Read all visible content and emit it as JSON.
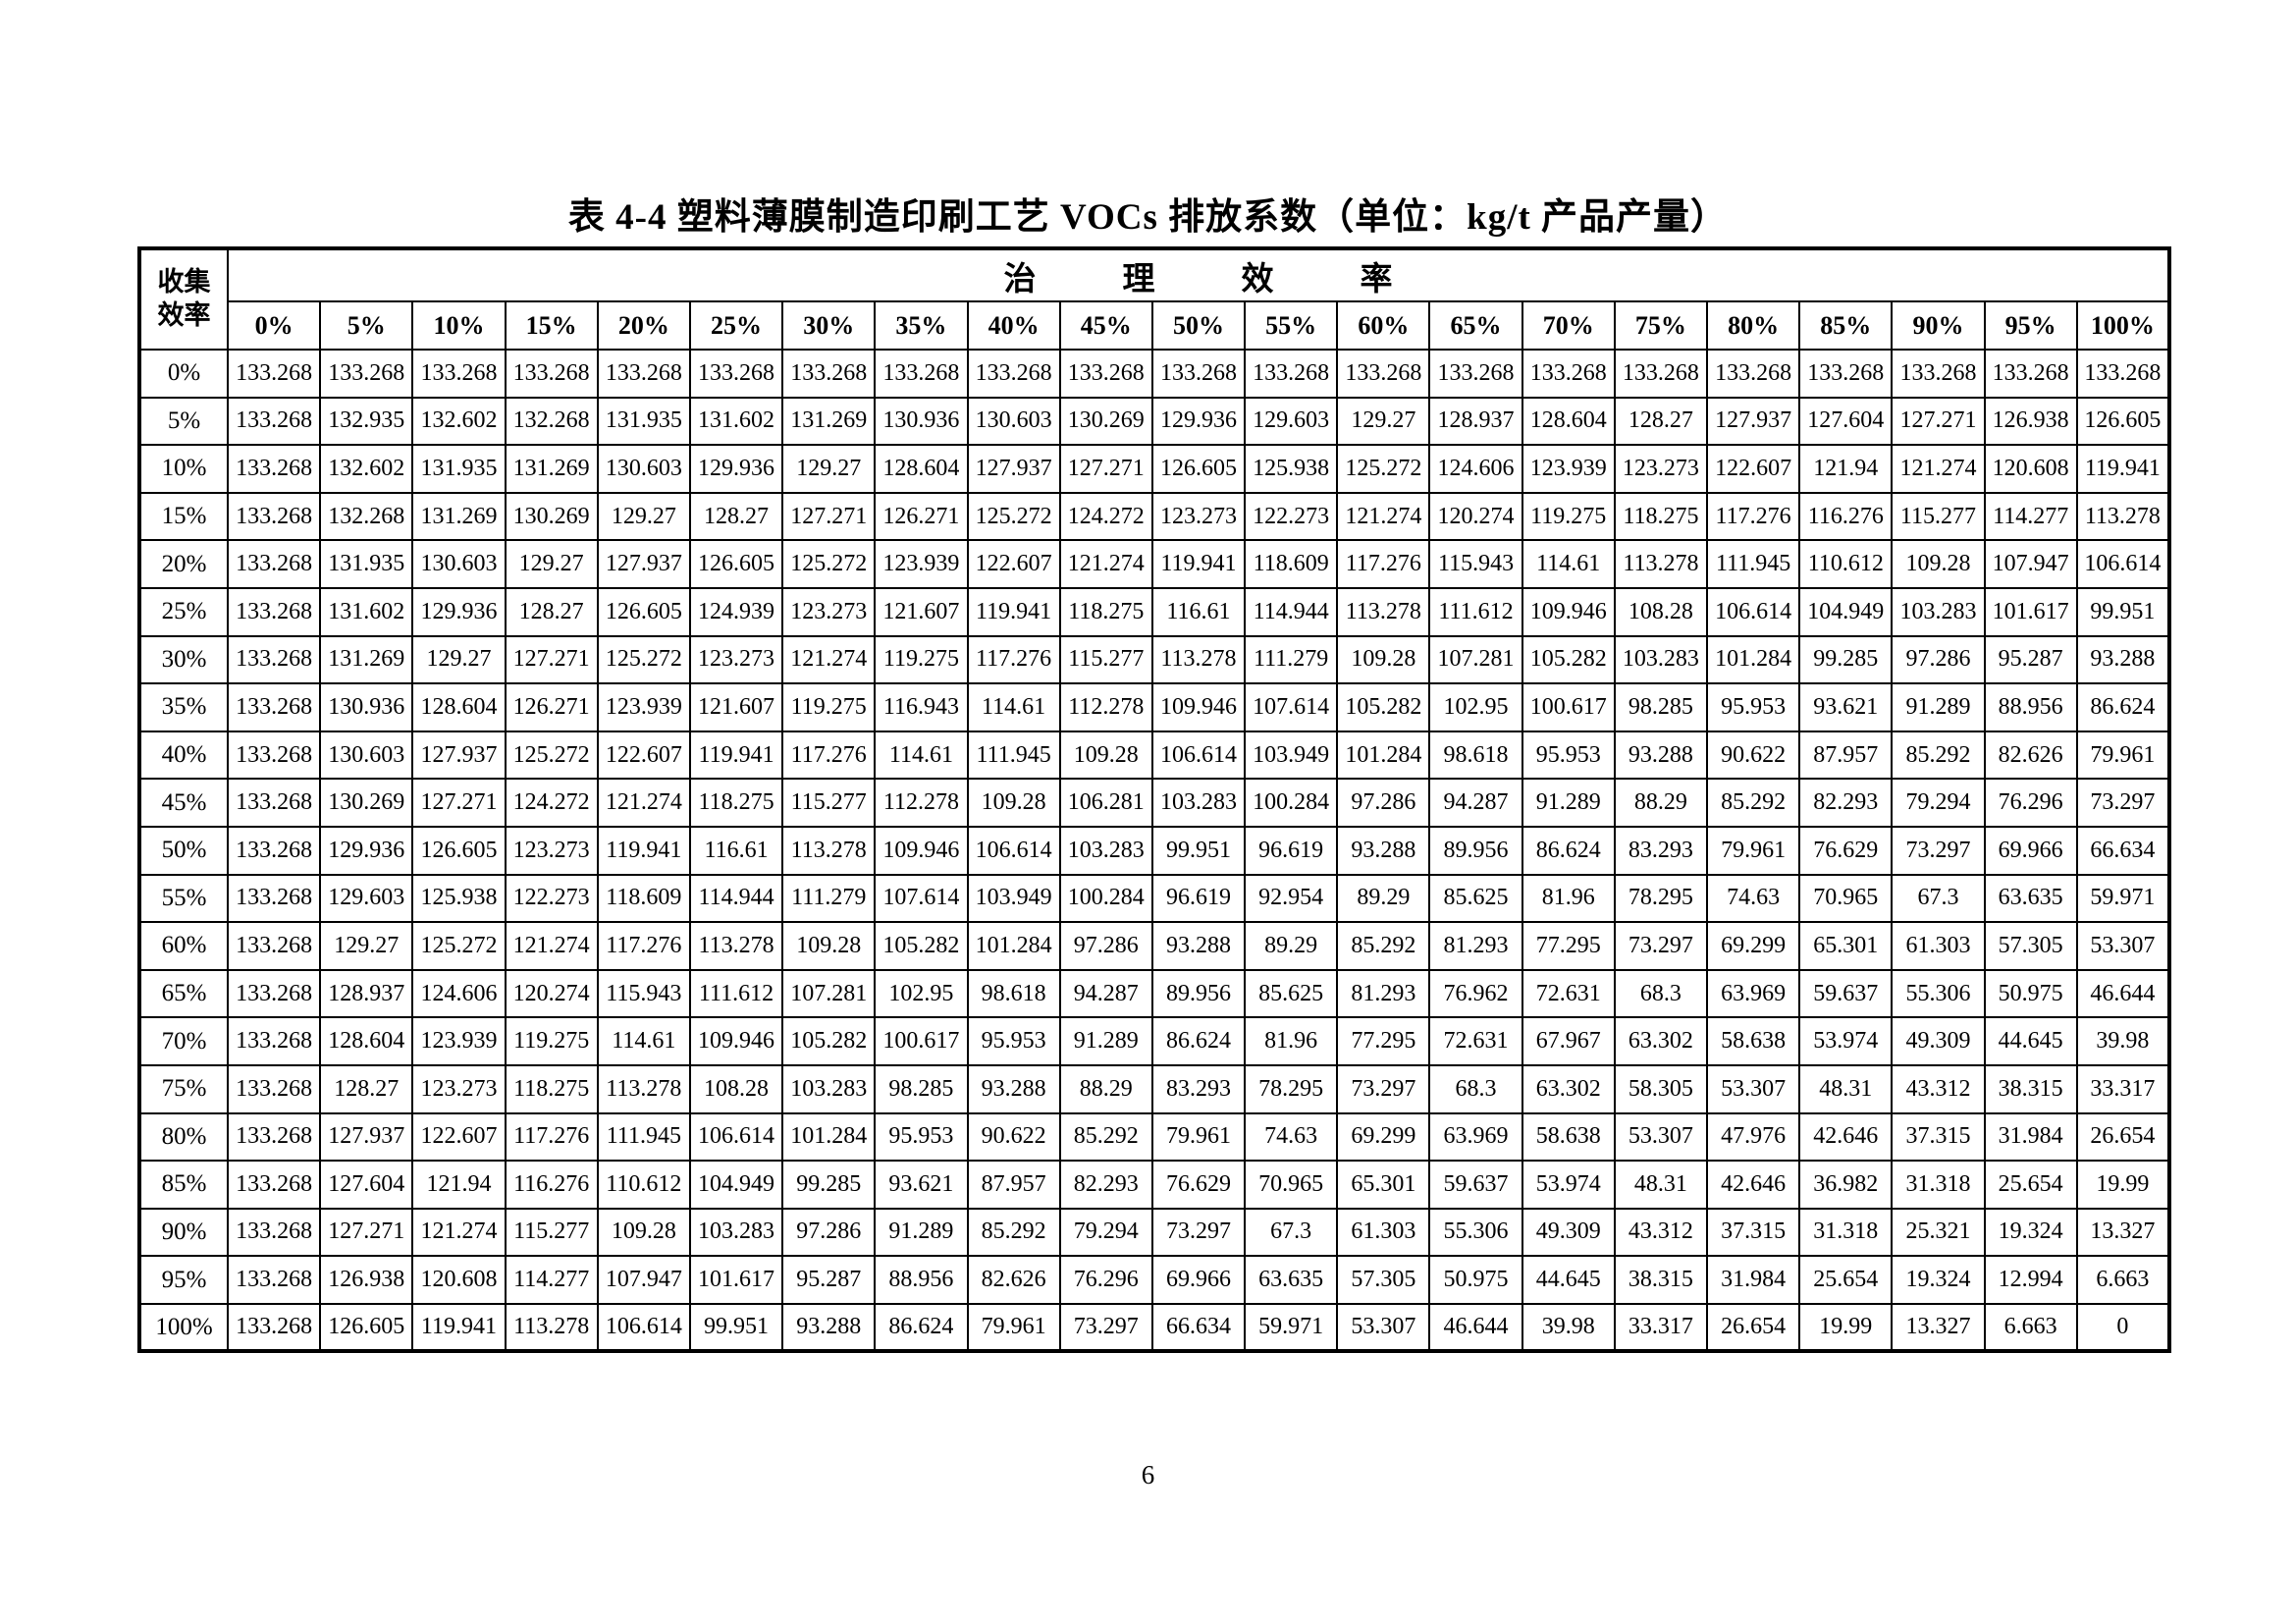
{
  "title": "表 4-4  塑料薄膜制造印刷工艺 VOCs 排放系数（单位：kg/t 产品产量）",
  "page": {
    "number": "6"
  },
  "table": {
    "corner": {
      "line1": "收集",
      "line2": "效率"
    },
    "top_header": "治理效率",
    "col_headers": [
      "0%",
      "5%",
      "10%",
      "15%",
      "20%",
      "25%",
      "30%",
      "35%",
      "40%",
      "45%",
      "50%",
      "55%",
      "60%",
      "65%",
      "70%",
      "75%",
      "80%",
      "85%",
      "90%",
      "95%",
      "100%"
    ],
    "rows": [
      {
        "label": "0%",
        "values": [
          "133.268",
          "133.268",
          "133.268",
          "133.268",
          "133.268",
          "133.268",
          "133.268",
          "133.268",
          "133.268",
          "133.268",
          "133.268",
          "133.268",
          "133.268",
          "133.268",
          "133.268",
          "133.268",
          "133.268",
          "133.268",
          "133.268",
          "133.268",
          "133.268"
        ]
      },
      {
        "label": "5%",
        "values": [
          "133.268",
          "132.935",
          "132.602",
          "132.268",
          "131.935",
          "131.602",
          "131.269",
          "130.936",
          "130.603",
          "130.269",
          "129.936",
          "129.603",
          "129.27",
          "128.937",
          "128.604",
          "128.27",
          "127.937",
          "127.604",
          "127.271",
          "126.938",
          "126.605"
        ]
      },
      {
        "label": "10%",
        "values": [
          "133.268",
          "132.602",
          "131.935",
          "131.269",
          "130.603",
          "129.936",
          "129.27",
          "128.604",
          "127.937",
          "127.271",
          "126.605",
          "125.938",
          "125.272",
          "124.606",
          "123.939",
          "123.273",
          "122.607",
          "121.94",
          "121.274",
          "120.608",
          "119.941"
        ]
      },
      {
        "label": "15%",
        "values": [
          "133.268",
          "132.268",
          "131.269",
          "130.269",
          "129.27",
          "128.27",
          "127.271",
          "126.271",
          "125.272",
          "124.272",
          "123.273",
          "122.273",
          "121.274",
          "120.274",
          "119.275",
          "118.275",
          "117.276",
          "116.276",
          "115.277",
          "114.277",
          "113.278"
        ]
      },
      {
        "label": "20%",
        "values": [
          "133.268",
          "131.935",
          "130.603",
          "129.27",
          "127.937",
          "126.605",
          "125.272",
          "123.939",
          "122.607",
          "121.274",
          "119.941",
          "118.609",
          "117.276",
          "115.943",
          "114.61",
          "113.278",
          "111.945",
          "110.612",
          "109.28",
          "107.947",
          "106.614"
        ]
      },
      {
        "label": "25%",
        "values": [
          "133.268",
          "131.602",
          "129.936",
          "128.27",
          "126.605",
          "124.939",
          "123.273",
          "121.607",
          "119.941",
          "118.275",
          "116.61",
          "114.944",
          "113.278",
          "111.612",
          "109.946",
          "108.28",
          "106.614",
          "104.949",
          "103.283",
          "101.617",
          "99.951"
        ]
      },
      {
        "label": "30%",
        "values": [
          "133.268",
          "131.269",
          "129.27",
          "127.271",
          "125.272",
          "123.273",
          "121.274",
          "119.275",
          "117.276",
          "115.277",
          "113.278",
          "111.279",
          "109.28",
          "107.281",
          "105.282",
          "103.283",
          "101.284",
          "99.285",
          "97.286",
          "95.287",
          "93.288"
        ]
      },
      {
        "label": "35%",
        "values": [
          "133.268",
          "130.936",
          "128.604",
          "126.271",
          "123.939",
          "121.607",
          "119.275",
          "116.943",
          "114.61",
          "112.278",
          "109.946",
          "107.614",
          "105.282",
          "102.95",
          "100.617",
          "98.285",
          "95.953",
          "93.621",
          "91.289",
          "88.956",
          "86.624"
        ]
      },
      {
        "label": "40%",
        "values": [
          "133.268",
          "130.603",
          "127.937",
          "125.272",
          "122.607",
          "119.941",
          "117.276",
          "114.61",
          "111.945",
          "109.28",
          "106.614",
          "103.949",
          "101.284",
          "98.618",
          "95.953",
          "93.288",
          "90.622",
          "87.957",
          "85.292",
          "82.626",
          "79.961"
        ]
      },
      {
        "label": "45%",
        "values": [
          "133.268",
          "130.269",
          "127.271",
          "124.272",
          "121.274",
          "118.275",
          "115.277",
          "112.278",
          "109.28",
          "106.281",
          "103.283",
          "100.284",
          "97.286",
          "94.287",
          "91.289",
          "88.29",
          "85.292",
          "82.293",
          "79.294",
          "76.296",
          "73.297"
        ]
      },
      {
        "label": "50%",
        "values": [
          "133.268",
          "129.936",
          "126.605",
          "123.273",
          "119.941",
          "116.61",
          "113.278",
          "109.946",
          "106.614",
          "103.283",
          "99.951",
          "96.619",
          "93.288",
          "89.956",
          "86.624",
          "83.293",
          "79.961",
          "76.629",
          "73.297",
          "69.966",
          "66.634"
        ]
      },
      {
        "label": "55%",
        "values": [
          "133.268",
          "129.603",
          "125.938",
          "122.273",
          "118.609",
          "114.944",
          "111.279",
          "107.614",
          "103.949",
          "100.284",
          "96.619",
          "92.954",
          "89.29",
          "85.625",
          "81.96",
          "78.295",
          "74.63",
          "70.965",
          "67.3",
          "63.635",
          "59.971"
        ]
      },
      {
        "label": "60%",
        "values": [
          "133.268",
          "129.27",
          "125.272",
          "121.274",
          "117.276",
          "113.278",
          "109.28",
          "105.282",
          "101.284",
          "97.286",
          "93.288",
          "89.29",
          "85.292",
          "81.293",
          "77.295",
          "73.297",
          "69.299",
          "65.301",
          "61.303",
          "57.305",
          "53.307"
        ]
      },
      {
        "label": "65%",
        "values": [
          "133.268",
          "128.937",
          "124.606",
          "120.274",
          "115.943",
          "111.612",
          "107.281",
          "102.95",
          "98.618",
          "94.287",
          "89.956",
          "85.625",
          "81.293",
          "76.962",
          "72.631",
          "68.3",
          "63.969",
          "59.637",
          "55.306",
          "50.975",
          "46.644"
        ]
      },
      {
        "label": "70%",
        "values": [
          "133.268",
          "128.604",
          "123.939",
          "119.275",
          "114.61",
          "109.946",
          "105.282",
          "100.617",
          "95.953",
          "91.289",
          "86.624",
          "81.96",
          "77.295",
          "72.631",
          "67.967",
          "63.302",
          "58.638",
          "53.974",
          "49.309",
          "44.645",
          "39.98"
        ]
      },
      {
        "label": "75%",
        "values": [
          "133.268",
          "128.27",
          "123.273",
          "118.275",
          "113.278",
          "108.28",
          "103.283",
          "98.285",
          "93.288",
          "88.29",
          "83.293",
          "78.295",
          "73.297",
          "68.3",
          "63.302",
          "58.305",
          "53.307",
          "48.31",
          "43.312",
          "38.315",
          "33.317"
        ]
      },
      {
        "label": "80%",
        "values": [
          "133.268",
          "127.937",
          "122.607",
          "117.276",
          "111.945",
          "106.614",
          "101.284",
          "95.953",
          "90.622",
          "85.292",
          "79.961",
          "74.63",
          "69.299",
          "63.969",
          "58.638",
          "53.307",
          "47.976",
          "42.646",
          "37.315",
          "31.984",
          "26.654"
        ]
      },
      {
        "label": "85%",
        "values": [
          "133.268",
          "127.604",
          "121.94",
          "116.276",
          "110.612",
          "104.949",
          "99.285",
          "93.621",
          "87.957",
          "82.293",
          "76.629",
          "70.965",
          "65.301",
          "59.637",
          "53.974",
          "48.31",
          "42.646",
          "36.982",
          "31.318",
          "25.654",
          "19.99"
        ]
      },
      {
        "label": "90%",
        "values": [
          "133.268",
          "127.271",
          "121.274",
          "115.277",
          "109.28",
          "103.283",
          "97.286",
          "91.289",
          "85.292",
          "79.294",
          "73.297",
          "67.3",
          "61.303",
          "55.306",
          "49.309",
          "43.312",
          "37.315",
          "31.318",
          "25.321",
          "19.324",
          "13.327"
        ]
      },
      {
        "label": "95%",
        "values": [
          "133.268",
          "126.938",
          "120.608",
          "114.277",
          "107.947",
          "101.617",
          "95.287",
          "88.956",
          "82.626",
          "76.296",
          "69.966",
          "63.635",
          "57.305",
          "50.975",
          "44.645",
          "38.315",
          "31.984",
          "25.654",
          "19.324",
          "12.994",
          "6.663"
        ]
      },
      {
        "label": "100%",
        "values": [
          "133.268",
          "126.605",
          "119.941",
          "113.278",
          "106.614",
          "99.951",
          "93.288",
          "86.624",
          "79.961",
          "73.297",
          "66.634",
          "59.971",
          "53.307",
          "46.644",
          "39.98",
          "33.317",
          "26.654",
          "19.99",
          "13.327",
          "6.663",
          "0"
        ]
      }
    ]
  }
}
